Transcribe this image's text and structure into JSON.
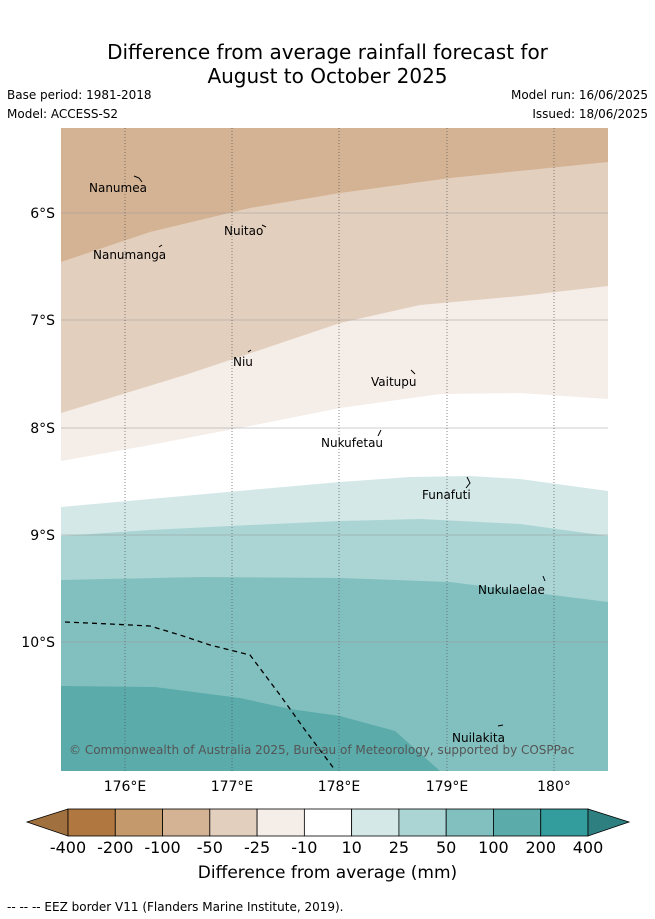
{
  "title_line1": "Difference from average rainfall forecast for",
  "title_line2": "August to October 2025",
  "base_period": "Base period: 1981-2018",
  "model": "Model: ACCESS-S2",
  "model_run": "Model run: 16/06/2025",
  "issued": "Issued: 18/06/2025",
  "lon_ticks": [
    "176°E",
    "177°E",
    "178°E",
    "179°E",
    "180°"
  ],
  "lat_ticks": [
    "6°S",
    "7°S",
    "8°S",
    "9°S",
    "10°S"
  ],
  "places": {
    "nanumea": "Nanumea",
    "nuitao": "Nuitao",
    "nanumanga": "Nanumanga",
    "niu": "Niu",
    "vaitupu": "Vaitupu",
    "nukufetau": "Nukufetau",
    "funafuti": "Funafuti",
    "nukulaelae": "Nukulaelae",
    "nuilakita": "Nuilakita"
  },
  "copyright": "© Commonwealth of Australia 2025, Bureau of Meteorology, supported by COSPPac",
  "colorbar": {
    "labels": [
      "-400",
      "-200",
      "-100",
      "-50",
      "-25",
      "-10",
      "10",
      "25",
      "50",
      "100",
      "200",
      "400"
    ],
    "colors": [
      "#b07840",
      "#c49a6c",
      "#d4b394",
      "#e3cfbd",
      "#f5ede8",
      "#ffffff",
      "#d3e8e7",
      "#aad5d4",
      "#82c0bf",
      "#5aabaa",
      "#329d9c"
    ],
    "low_extend_color": "#a0703e",
    "high_extend_color": "#2e7f80",
    "title": "Difference from average (mm)"
  },
  "footnote": "--  --  -- EEZ border V11 (Flanders Marine Institute, 2019)."
}
